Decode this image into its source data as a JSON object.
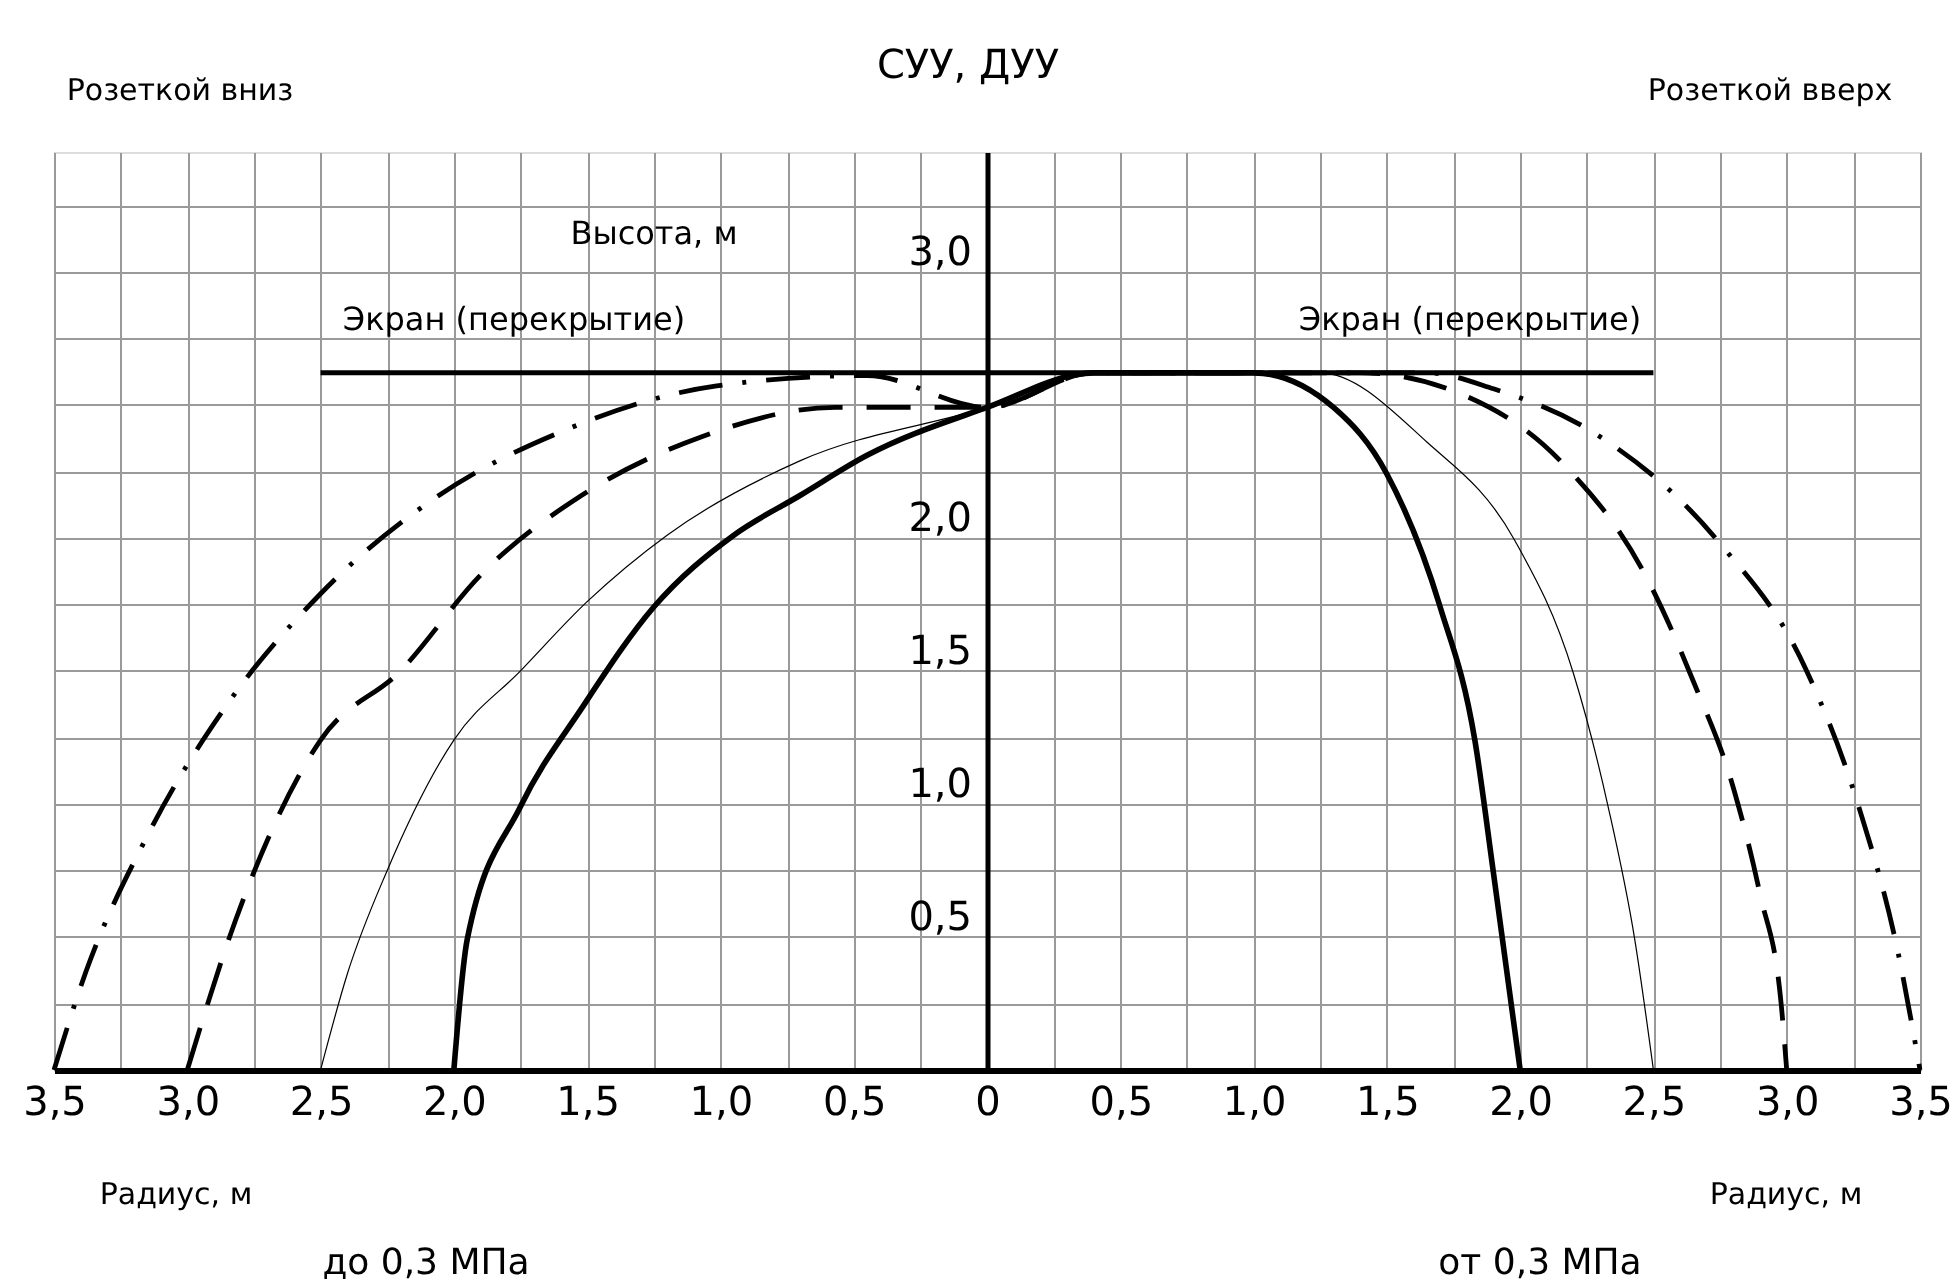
{
  "chart_data": {
    "type": "line",
    "title": "СУУ, ДУУ",
    "xlabel": "Радиус, м",
    "ylabel": "Высота, м",
    "annotations": [
      "Розеткой вниз",
      "Розеткой вверх",
      "Экран (перекрытие)",
      "Экран (перекрытие)",
      "Радиус, м",
      "до 0,3 МПа",
      "от 0,3 МПа"
    ],
    "series": [
      {
        "color": "#000000",
        "line_style": "solid",
        "x": [
          -2.5,
          2.5
        ],
        "values": [
          2.62,
          2.62
        ]
      },
      {
        "color": "#000000",
        "line_style": "solid",
        "x": [
          -2.0,
          -1.95,
          -1.75,
          -1.52,
          -1.25,
          -0.95,
          -0.7,
          -0.45,
          0,
          0.4,
          1.0,
          1.3,
          1.5,
          1.7,
          1.83,
          1.9,
          2.0
        ],
        "values": [
          0,
          0.49,
          0.99,
          1.36,
          1.74,
          2.01,
          2.16,
          2.31,
          2.49,
          2.62,
          2.62,
          2.49,
          2.24,
          1.74,
          1.24,
          0.74,
          0
        ]
      },
      {
        "color": "#000000",
        "line_style": "solid",
        "x": [
          -2.5,
          -2.4,
          -2.25,
          -2.0,
          -1.75,
          -1.5,
          -1.2,
          -0.7,
          0,
          0.4,
          1.25,
          1.65,
          1.98,
          2.2,
          2.33,
          2.43,
          2.5
        ],
        "values": [
          0,
          0.36,
          0.75,
          1.24,
          1.5,
          1.76,
          2.01,
          2.29,
          2.49,
          2.62,
          2.62,
          2.36,
          1.99,
          1.49,
          0.99,
          0.49,
          0
        ]
      },
      {
        "color": "#000000",
        "line_style": "dashed",
        "x": [
          -3.0,
          -2.82,
          -2.5,
          -2.2,
          -1.9,
          -1.52,
          -1.07,
          -0.57,
          0,
          0.4,
          1.4,
          1.78,
          2.15,
          2.48,
          2.65,
          2.8,
          2.9,
          2.98,
          3.0
        ],
        "values": [
          0,
          0.56,
          1.24,
          1.5,
          1.86,
          2.16,
          2.38,
          2.49,
          2.49,
          2.62,
          2.62,
          2.54,
          2.29,
          1.84,
          1.46,
          1.06,
          0.66,
          0.24,
          0
        ]
      },
      {
        "color": "#000000",
        "line_style": "dashdot",
        "x": [
          -3.5,
          -3.38,
          -3.15,
          -2.86,
          -2.5,
          -2.07,
          -1.57,
          -1.02,
          -0.45,
          0,
          0.4,
          1.65,
          1.9,
          2.3,
          2.74,
          3.07,
          3.27,
          3.42,
          3.5
        ],
        "values": [
          0,
          0.37,
          0.88,
          1.36,
          1.79,
          2.15,
          2.41,
          2.57,
          2.61,
          2.49,
          2.62,
          2.62,
          2.56,
          2.38,
          1.99,
          1.51,
          0.99,
          0.43,
          0
        ]
      }
    ],
    "xlim": [
      -3.5,
      3.5
    ],
    "xticks": [
      {
        "value": -3.5,
        "label": "3,5"
      },
      {
        "value": -3.25,
        "label": null
      },
      {
        "value": -3.0,
        "label": "3,0"
      },
      {
        "value": -2.75,
        "label": null
      },
      {
        "value": -2.5,
        "label": "2,5"
      },
      {
        "value": -2.25,
        "label": null
      },
      {
        "value": -2.0,
        "label": "2,0"
      },
      {
        "value": -1.75,
        "label": null
      },
      {
        "value": -1.5,
        "label": "1,5"
      },
      {
        "value": -1.25,
        "label": null
      },
      {
        "value": -1.0,
        "label": "1,0"
      },
      {
        "value": -0.75,
        "label": null
      },
      {
        "value": -0.5,
        "label": "0,5"
      },
      {
        "value": -0.25,
        "label": null
      },
      0,
      {
        "value": 0.25,
        "label": null
      },
      {
        "value": 0.5,
        "label": "0,5"
      },
      {
        "value": 0.75,
        "label": null
      },
      {
        "value": 1.0,
        "label": "1,0"
      },
      {
        "value": 1.25,
        "label": null
      },
      {
        "value": 1.5,
        "label": "1,5"
      },
      {
        "value": 1.75,
        "label": null
      },
      {
        "value": 2.0,
        "label": "2,0"
      },
      {
        "value": 2.25,
        "label": null
      },
      {
        "value": 2.5,
        "label": "2,5"
      },
      {
        "value": 2.75,
        "label": null
      },
      {
        "value": 3.0,
        "label": "3,0"
      },
      {
        "value": 3.25,
        "label": null
      },
      {
        "value": 3.5,
        "label": "3,5"
      }
    ],
    "ylim": [
      0,
      3.45
    ],
    "yticks": [
      {
        "value": 0,
        "label": null
      },
      {
        "value": 0.25,
        "label": null
      },
      {
        "value": 0.5,
        "label": "0,5"
      },
      {
        "value": 0.75,
        "label": null
      },
      {
        "value": 1.0,
        "label": "1,0"
      },
      {
        "value": 1.25,
        "label": null
      },
      {
        "value": 1.5,
        "label": "1,5"
      },
      {
        "value": 1.75,
        "label": null
      },
      {
        "value": 2.0,
        "label": "2,0"
      },
      {
        "value": 2.25,
        "label": null
      },
      {
        "value": 2.5,
        "label": null
      },
      {
        "value": 2.75,
        "label": null
      },
      {
        "value": 3.0,
        "label": "3,0"
      },
      {
        "value": 3.25,
        "label": null
      }
    ],
    "grid": true,
    "marker": "none"
  }
}
